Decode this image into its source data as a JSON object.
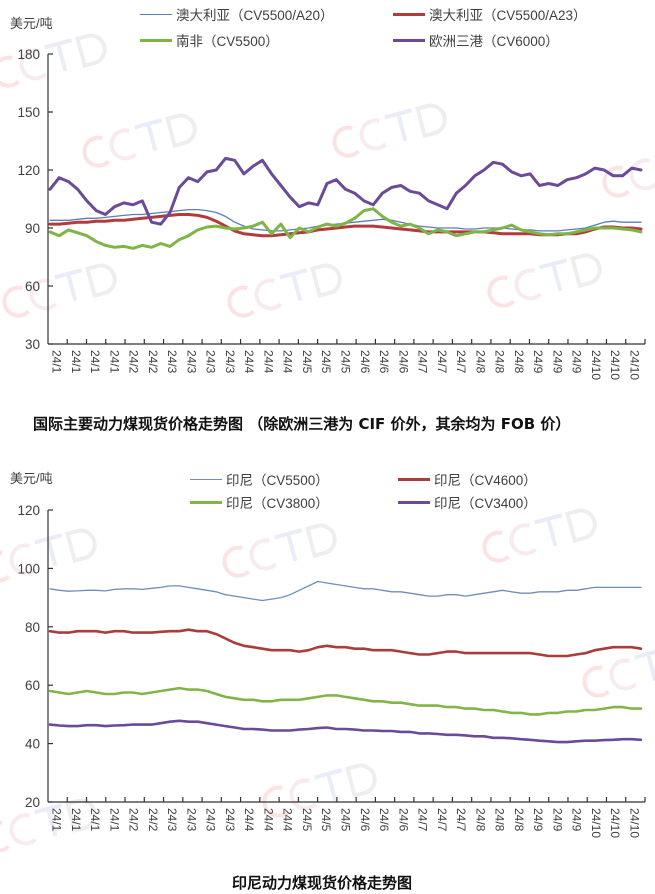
{
  "watermark": "CCTD",
  "colors": {
    "aus_a20": "#5b7fb5",
    "aus_a23": "#b33b3b",
    "sa": "#7fb546",
    "eu": "#6a4a99",
    "idn_5500": "#6f8fb8",
    "idn_4600": "#aa3c3c",
    "idn_3800": "#82b548",
    "idn_3400": "#6a4a99"
  },
  "chart_data": [
    {
      "type": "line",
      "title": "国际主要动力煤现货价格走势图 （除欧洲三港为 CIF 价外，其余均为 FOB 价）",
      "ylabel": "美元/吨",
      "xlabel": "",
      "ylim": [
        30,
        180
      ],
      "yticks": [
        "30",
        "60",
        "90",
        "120",
        "150",
        "180"
      ],
      "ytick_values": [
        30,
        60,
        90,
        120,
        150,
        180
      ],
      "x_tick_labels": [
        "24/1",
        "24/1",
        "24/1",
        "24/1",
        "24/2",
        "24/2",
        "24/3",
        "24/3",
        "24/3",
        "24/3",
        "24/4",
        "24/4",
        "24/4",
        "24/5",
        "24/5",
        "24/5",
        "24/6",
        "24/6",
        "24/6",
        "24/7",
        "24/7",
        "24/7",
        "24/8",
        "24/8",
        "24/8",
        "24/9",
        "24/9",
        "24/9",
        "24/10",
        "24/10",
        "24/10"
      ],
      "grid": false,
      "legend_position": "top",
      "series": [
        {
          "name": "澳大利亚（CV5500/A20）",
          "color_key": "aus_a20",
          "width": 1.3,
          "values": [
            94,
            94,
            94,
            94.5,
            95,
            95,
            95.5,
            96,
            96.5,
            97,
            97,
            97.5,
            98,
            98.5,
            99,
            99.5,
            99.5,
            99,
            98,
            96,
            93,
            91,
            89.5,
            89,
            88.5,
            88.5,
            89,
            89.5,
            90,
            91,
            91.5,
            92,
            92.5,
            93,
            93.5,
            94,
            94.5,
            94,
            93,
            92,
            91,
            90.5,
            90,
            90,
            90,
            89.5,
            89.5,
            90,
            90,
            90,
            89.5,
            89,
            89,
            88.5,
            88.5,
            88.5,
            89,
            89.5,
            90,
            91.5,
            93,
            93.5,
            93,
            93,
            93
          ]
        },
        {
          "name": "澳大利亚（CV5500/A23）",
          "color_key": "aus_a23",
          "width": 3,
          "values": [
            92,
            92,
            92.5,
            93,
            93,
            93.5,
            93.5,
            94,
            94,
            94.5,
            95,
            95.5,
            96,
            96.5,
            97,
            97,
            96.5,
            95.5,
            93.5,
            91,
            88.5,
            87,
            86.5,
            86,
            86,
            86.5,
            87,
            87.5,
            88,
            89,
            89.5,
            90,
            90.5,
            91,
            91,
            91,
            90.5,
            90,
            89.5,
            89,
            88.5,
            88,
            88,
            88,
            88,
            88,
            88,
            88,
            87.5,
            87,
            87,
            87,
            87,
            86.5,
            86.5,
            86.5,
            87,
            87,
            88,
            89.5,
            90.5,
            90.5,
            90,
            90,
            89.5
          ]
        },
        {
          "name": "南非（CV5500）",
          "color_key": "sa",
          "width": 3,
          "values": [
            88,
            86,
            89,
            87.5,
            86,
            83,
            81,
            80,
            80.5,
            79.5,
            81,
            80,
            82,
            80.5,
            84,
            86,
            89,
            90.5,
            91,
            90,
            89.5,
            90,
            91,
            93,
            87,
            92,
            85,
            90,
            88,
            90.5,
            92,
            91,
            92.5,
            95,
            99,
            100,
            96,
            93,
            91,
            92,
            90,
            87,
            89,
            88,
            86,
            87,
            88,
            88,
            89,
            90,
            91.5,
            89,
            88,
            87,
            86.5,
            87,
            87,
            88,
            89,
            90,
            90,
            90,
            89.5,
            89,
            88
          ]
        },
        {
          "name": "欧洲三港（CV6000）",
          "color_key": "eu",
          "width": 3,
          "values": [
            110,
            116,
            114,
            110,
            104,
            99,
            97,
            101,
            103,
            102,
            104,
            93,
            92,
            98,
            111,
            116,
            114,
            119,
            120,
            126,
            125,
            118,
            122,
            125,
            118,
            112,
            106,
            101,
            103,
            102,
            113,
            115,
            110,
            108,
            104,
            102,
            108,
            111,
            112,
            109,
            108,
            104,
            102,
            100,
            108,
            112,
            117,
            120,
            124,
            123,
            119,
            117,
            118,
            112,
            113,
            112,
            115,
            116,
            118,
            121,
            120,
            117,
            117,
            121,
            120
          ]
        }
      ]
    },
    {
      "type": "line",
      "title": "印尼动力煤现货价格走势图",
      "ylabel": "美元/吨",
      "xlabel": "",
      "ylim": [
        20,
        120
      ],
      "yticks": [
        "20",
        "40",
        "60",
        "80",
        "100",
        "120"
      ],
      "ytick_values": [
        20,
        40,
        60,
        80,
        100,
        120
      ],
      "x_tick_labels": [
        "24/1",
        "24/1",
        "24/1",
        "24/1",
        "24/2",
        "24/2",
        "24/3",
        "24/3",
        "24/3",
        "24/3",
        "24/4",
        "24/4",
        "24/4",
        "24/5",
        "24/5",
        "24/5",
        "24/6",
        "24/6",
        "24/6",
        "24/7",
        "24/7",
        "24/7",
        "24/8",
        "24/8",
        "24/8",
        "24/9",
        "24/9",
        "24/9",
        "24/10",
        "24/10",
        "24/10"
      ],
      "grid": false,
      "legend_position": "top",
      "series": [
        {
          "name": "印尼（CV5500）",
          "color_key": "idn_5500",
          "width": 1.3,
          "values": [
            93,
            92.5,
            92.2,
            92.3,
            92.5,
            92.5,
            92.3,
            92.8,
            93,
            93,
            92.8,
            93.2,
            93.5,
            94,
            94,
            93.5,
            93,
            92.5,
            92,
            91,
            90.5,
            90,
            89.5,
            89,
            89.5,
            90,
            91,
            92.5,
            94,
            95.5,
            95,
            94.5,
            94,
            93.5,
            93,
            93,
            92.5,
            92,
            92,
            91.5,
            91,
            90.5,
            90.5,
            91,
            91,
            90.5,
            91,
            91.5,
            92,
            92.5,
            92,
            91.5,
            91.5,
            92,
            92,
            92,
            92.5,
            92.5,
            93,
            93.5,
            93.5,
            93.5,
            93.5,
            93.5,
            93.5
          ]
        },
        {
          "name": "印尼（CV4600）",
          "color_key": "idn_4600",
          "width": 2.6,
          "values": [
            78.5,
            78,
            78,
            78.5,
            78.5,
            78.5,
            78,
            78.5,
            78.5,
            78,
            78,
            78,
            78.3,
            78.5,
            78.5,
            79,
            78.5,
            78.5,
            77.5,
            76,
            74.5,
            73.5,
            73,
            72.5,
            72,
            72,
            72,
            71.5,
            72,
            73,
            73.5,
            73,
            73,
            72.5,
            72.5,
            72,
            72,
            72,
            71.5,
            71,
            70.5,
            70.5,
            71,
            71.5,
            71.5,
            71,
            71,
            71,
            71,
            71,
            71,
            71,
            71,
            70.5,
            70,
            70,
            70,
            70.5,
            71,
            72,
            72.5,
            73,
            73,
            73,
            72.5
          ]
        },
        {
          "name": "印尼（CV3800）",
          "color_key": "idn_3800",
          "width": 2.6,
          "values": [
            58,
            57.5,
            57,
            57.5,
            58,
            57.5,
            57,
            57,
            57.5,
            57.5,
            57,
            57.5,
            58,
            58.5,
            59,
            58.5,
            58.5,
            58,
            57,
            56,
            55.5,
            55,
            55,
            54.5,
            54.5,
            55,
            55,
            55,
            55.5,
            56,
            56.5,
            56.5,
            56,
            55.5,
            55,
            54.5,
            54.5,
            54,
            54,
            53.5,
            53,
            53,
            53,
            52.5,
            52.5,
            52,
            52,
            51.5,
            51.5,
            51,
            50.5,
            50.5,
            50,
            50,
            50.5,
            50.5,
            51,
            51,
            51.5,
            51.5,
            52,
            52.5,
            52.5,
            52,
            52
          ]
        },
        {
          "name": "印尼（CV3400）",
          "color_key": "idn_3400",
          "width": 2.6,
          "values": [
            46.5,
            46.2,
            46,
            46,
            46.3,
            46.3,
            46,
            46.2,
            46.3,
            46.5,
            46.5,
            46.5,
            47,
            47.5,
            47.8,
            47.5,
            47.5,
            47,
            46.5,
            46,
            45.5,
            45,
            45,
            44.8,
            44.5,
            44.5,
            44.5,
            44.8,
            45,
            45.3,
            45.5,
            45,
            45,
            44.8,
            44.5,
            44.5,
            44.3,
            44.3,
            44,
            44,
            43.5,
            43.5,
            43.3,
            43,
            43,
            42.8,
            42.5,
            42.5,
            42,
            42,
            41.8,
            41.5,
            41.3,
            41,
            40.8,
            40.5,
            40.5,
            40.8,
            41,
            41,
            41.2,
            41.3,
            41.5,
            41.5,
            41.3
          ]
        }
      ]
    }
  ]
}
